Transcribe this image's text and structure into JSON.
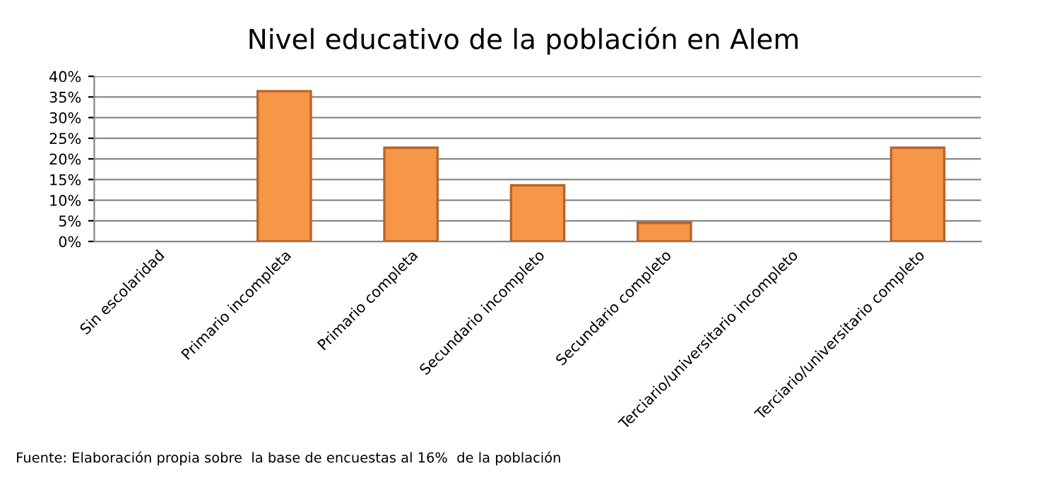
{
  "chart_data": {
    "type": "bar",
    "title": "Nivel educativo de la población en Alem",
    "categories": [
      "Sin escolaridad",
      "Primario incompleta",
      "Primario completa",
      "Secundario incompleto",
      "Secundario completo",
      "Terciario/universitario incompleto",
      "Terciario/universitario completo"
    ],
    "values": [
      0,
      36.4,
      22.7,
      13.6,
      4.5,
      0,
      22.7
    ],
    "color": "#f79646",
    "ylim": [
      0,
      40
    ],
    "yticks": [
      {
        "value": 0,
        "label": "0%"
      },
      {
        "value": 5,
        "label": "5%"
      },
      {
        "value": 10,
        "label": "10%"
      },
      {
        "value": 15,
        "label": "15%"
      },
      {
        "value": 20,
        "label": "20%"
      },
      {
        "value": 25,
        "label": "25%"
      },
      {
        "value": 30,
        "label": "30%"
      },
      {
        "value": 35,
        "label": "35%"
      },
      {
        "value": 40,
        "label": "40%"
      }
    ],
    "grid": "y",
    "annotations": [
      "Fuente: Elaboración propia sobre  la base de encuestas al 16%  de la población"
    ]
  }
}
